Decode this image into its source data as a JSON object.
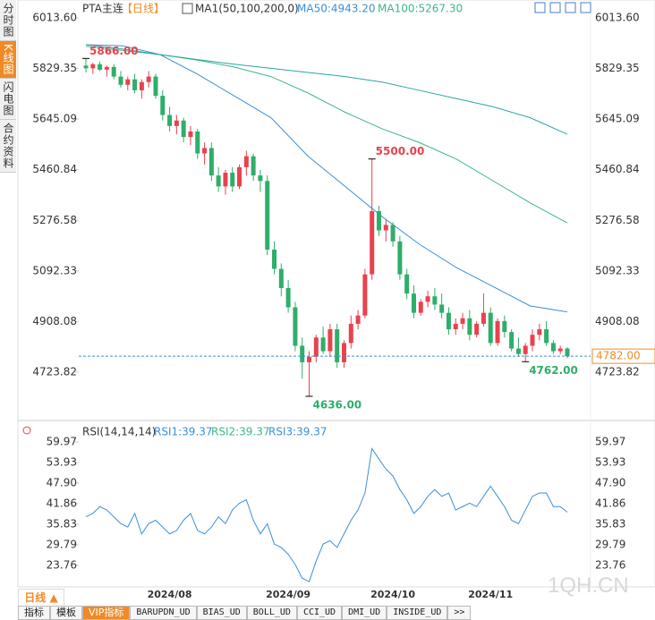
{
  "chart_data": [
    {
      "type": "candlestick",
      "title": "PTA主连",
      "period": "【日线】",
      "indicator": "MA1(50,100,200,0)",
      "open": [
        5840,
        5830,
        5845,
        5825,
        5835,
        5800,
        5770,
        5790,
        5750,
        5780,
        5800,
        5730,
        5660,
        5620,
        5640,
        5580,
        5600,
        5520,
        5540,
        5440,
        5400,
        5450,
        5400,
        5470,
        5510,
        5440,
        5420,
        5170,
        5100,
        5030,
        4960,
        4820,
        4760,
        4780,
        4850,
        4800,
        4880,
        4760,
        4830,
        4900,
        4930,
        5080,
        5310,
        5240,
        5260,
        5200,
        5080,
        5010,
        4940,
        4980,
        5000,
        4970,
        4940,
        4880,
        4900,
        4920,
        4860,
        4900,
        4940,
        4830,
        4910,
        4870,
        4810,
        4790,
        4820,
        4860,
        4880,
        4830,
        4800,
        4810
      ],
      "high": [
        5866,
        5850,
        5855,
        5840,
        5845,
        5820,
        5800,
        5810,
        5790,
        5820,
        5810,
        5750,
        5690,
        5660,
        5650,
        5620,
        5610,
        5560,
        5560,
        5470,
        5460,
        5470,
        5480,
        5530,
        5520,
        5460,
        5440,
        5200,
        5120,
        5060,
        4980,
        4850,
        4800,
        4860,
        4890,
        4900,
        4900,
        4840,
        4930,
        4950,
        5100,
        5500,
        5330,
        5280,
        5270,
        5220,
        5100,
        5040,
        4990,
        5020,
        5030,
        5010,
        4960,
        4920,
        4940,
        4950,
        4910,
        5010,
        4960,
        4920,
        4930,
        4880,
        4850,
        4830,
        4880,
        4900,
        4910,
        4840,
        4820,
        4815
      ],
      "low": [
        5815,
        5810,
        5820,
        5800,
        5790,
        5760,
        5750,
        5740,
        5720,
        5760,
        5720,
        5640,
        5600,
        5590,
        5560,
        5550,
        5500,
        5480,
        5420,
        5380,
        5370,
        5380,
        5390,
        5440,
        5420,
        5380,
        5150,
        5080,
        5000,
        4940,
        4800,
        4700,
        4636,
        4760,
        4790,
        4780,
        4740,
        4740,
        4810,
        4880,
        4920,
        5060,
        5220,
        5200,
        5180,
        5060,
        4990,
        4920,
        4930,
        4960,
        4950,
        4920,
        4860,
        4860,
        4880,
        4840,
        4850,
        4890,
        4820,
        4820,
        4850,
        4800,
        4780,
        4762,
        4800,
        4840,
        4820,
        4790,
        4790,
        4775
      ],
      "close": [
        5830,
        5845,
        5825,
        5835,
        5800,
        5770,
        5790,
        5750,
        5780,
        5800,
        5730,
        5660,
        5620,
        5640,
        5580,
        5600,
        5520,
        5540,
        5440,
        5400,
        5450,
        5400,
        5470,
        5510,
        5440,
        5420,
        5170,
        5100,
        5030,
        4960,
        4820,
        4760,
        4780,
        4850,
        4800,
        4880,
        4760,
        4830,
        4900,
        4930,
        5080,
        5310,
        5240,
        5260,
        5200,
        5080,
        5010,
        4940,
        4980,
        5000,
        4970,
        4940,
        4880,
        4900,
        4920,
        4860,
        4900,
        4940,
        4830,
        4910,
        4870,
        4810,
        4790,
        4820,
        4860,
        4880,
        4830,
        4800,
        4810,
        4782
      ],
      "up_color": "#e8424e",
      "down_color": "#2eae6a",
      "ma_lines": [
        {
          "name": "MA50:4943.20",
          "color": "#3b8fd9",
          "values": [
            5916,
            5912,
            5880,
            5810,
            5730,
            5650,
            5510,
            5400,
            5290,
            5190,
            5105,
            5035,
            4965,
            4943.2
          ]
        },
        {
          "name": "MA100:5267.30",
          "color": "#3cb88a",
          "values": [
            5910,
            5895,
            5880,
            5860,
            5835,
            5800,
            5740,
            5670,
            5610,
            5560,
            5500,
            5420,
            5340,
            5267.3
          ]
        },
        {
          "color": "#2aa6a3",
          "values": [
            5916,
            5900,
            5880,
            5862,
            5845,
            5830,
            5815,
            5800,
            5780,
            5750,
            5720,
            5690,
            5650,
            5590
          ]
        }
      ],
      "ylim": [
        4561,
        6013.6
      ],
      "yticks": [
        {
          "value": 6013.6,
          "label": "6013.60"
        },
        {
          "value": 5829.35,
          "label": "5829.35"
        },
        {
          "value": 5645.09,
          "label": "5645.09"
        },
        {
          "value": 5460.84,
          "label": "5460.84"
        },
        {
          "value": 5276.58,
          "label": "5276.58"
        },
        {
          "value": 5092.33,
          "label": "5092.33"
        },
        {
          "value": 4908.08,
          "label": "4908.08"
        },
        {
          "value": 4723.82,
          "label": "4723.82"
        }
      ],
      "last_price": 4782,
      "last_price_label": "4782.00",
      "annotations": [
        "5866.00",
        "4636.00",
        "5500.00",
        "4762.00"
      ]
    },
    {
      "type": "line",
      "title": "RSI(14,14,14)",
      "legend": [
        "RSI1:39.37",
        "RSI2:39.37",
        "RSI3:39.37"
      ],
      "legend_colors": [
        "#3b8fd9",
        "#3cb88a",
        "#3b8fd9"
      ],
      "categories": [
        null,
        null,
        null,
        null,
        null,
        null,
        null,
        null,
        null,
        null,
        null,
        null,
        "2024/08",
        null,
        null,
        null,
        null,
        null,
        null,
        null,
        null,
        null,
        null,
        null,
        null,
        null,
        null,
        null,
        null,
        "2024/09",
        null,
        null,
        null,
        null,
        null,
        null,
        null,
        null,
        null,
        null,
        null,
        null,
        null,
        null,
        "2024/10",
        null,
        null,
        null,
        null,
        null,
        null,
        null,
        null,
        null,
        null,
        null,
        null,
        null,
        "2024/11",
        null,
        null,
        null,
        null,
        null,
        null,
        null,
        null,
        null,
        null,
        null
      ],
      "series": [
        {
          "color": "#3b8fd9",
          "values": [
            38,
            39,
            41,
            40,
            38,
            36,
            35,
            39,
            33,
            36,
            37,
            35,
            33,
            34,
            37,
            39,
            34,
            33,
            35,
            38,
            36,
            40,
            42,
            43,
            37,
            33,
            36,
            30,
            29,
            27,
            24,
            20,
            19,
            25,
            30,
            31,
            29,
            33,
            37,
            40,
            45,
            58,
            55,
            52,
            50,
            46,
            43,
            39,
            41,
            44,
            46,
            44,
            45,
            40,
            41,
            42,
            41,
            44,
            47,
            44,
            41,
            37,
            36,
            40,
            44,
            45,
            45,
            41,
            41,
            39.37
          ]
        }
      ],
      "ylim": [
        17.7,
        62.07
      ],
      "yticks": [
        59.97,
        53.93,
        {
          "value": 47.9,
          "label": "47.90"
        },
        41.86,
        35.83,
        29.79,
        23.76
      ]
    }
  ],
  "sidebar": [
    "分时图",
    "K线图",
    "闪电图",
    "合约资料"
  ],
  "bottom": {
    "period": "日线 ▲",
    "tabs": [
      "指标",
      "模板",
      "VIP指标",
      "BARUPDN_UD",
      "BIAS_UD",
      "BOLL_UD",
      "CCI_UD",
      "DMI_UD",
      "INSIDE_UD",
      ">>"
    ]
  },
  "watermark": "1QH.CN"
}
